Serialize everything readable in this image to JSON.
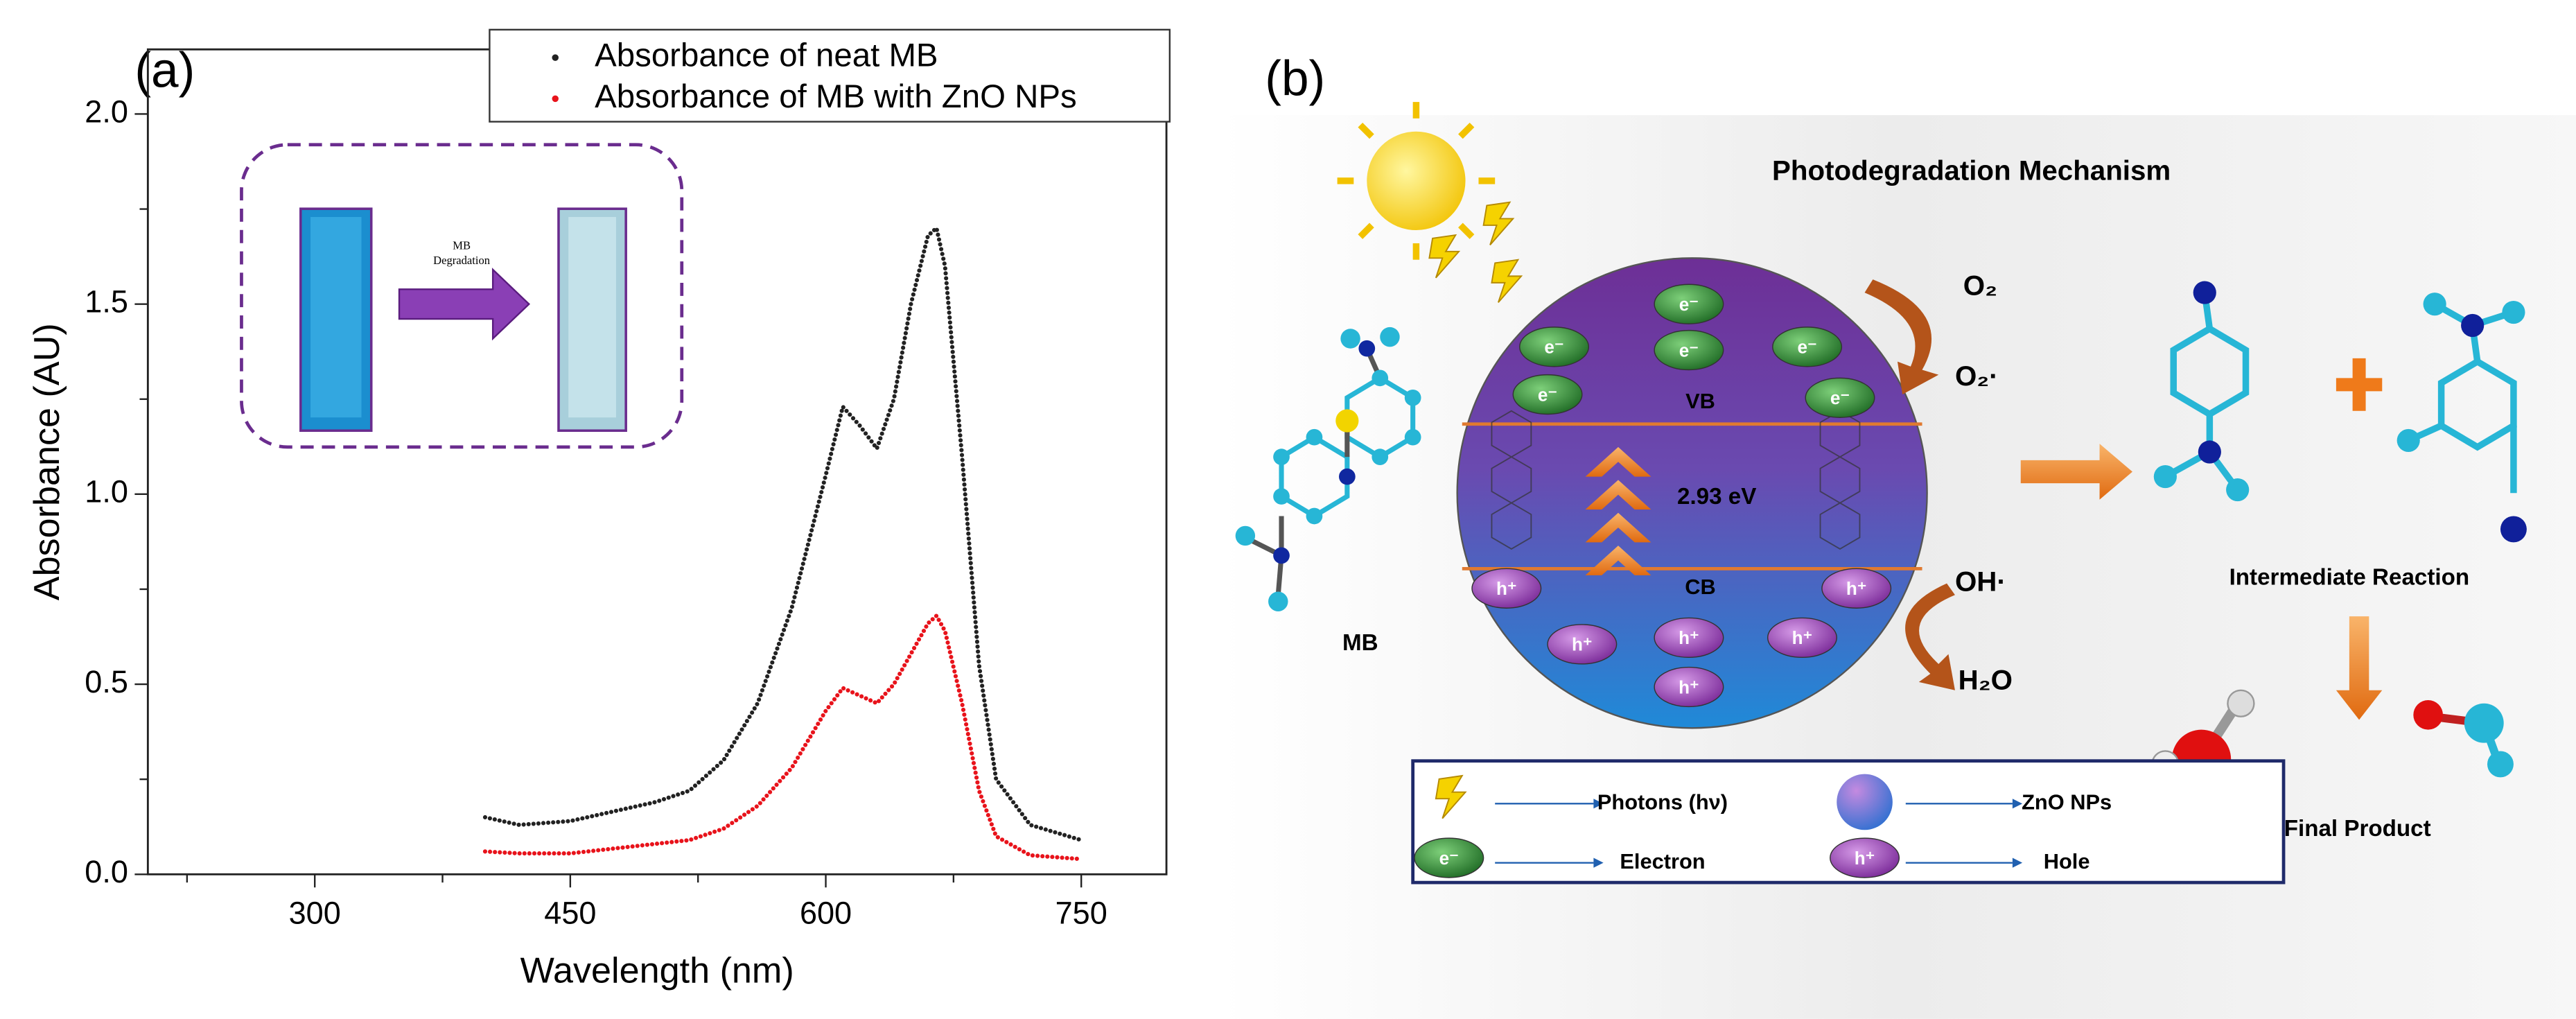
{
  "panel_labels": [
    "(a)",
    "(b)"
  ],
  "chart_data": {
    "type": "line",
    "x_label": "Wavelength (nm)",
    "y_label": "Absorbance (AU)",
    "x": [
      400,
      420,
      450,
      480,
      500,
      520,
      540,
      560,
      580,
      600,
      610,
      620,
      630,
      640,
      650,
      660,
      665,
      670,
      680,
      690,
      700,
      720,
      750
    ],
    "series": [
      {
        "name": "Absorbance of neat MB",
        "color": "#222222",
        "values": [
          0.15,
          0.13,
          0.14,
          0.17,
          0.19,
          0.22,
          0.3,
          0.45,
          0.7,
          1.05,
          1.23,
          1.18,
          1.12,
          1.25,
          1.5,
          1.68,
          1.7,
          1.6,
          1.1,
          0.55,
          0.25,
          0.13,
          0.09
        ]
      },
      {
        "name": "Absorbance of MB with ZnO NPs",
        "color": "#e8131b",
        "values": [
          0.06,
          0.055,
          0.055,
          0.07,
          0.08,
          0.09,
          0.12,
          0.18,
          0.28,
          0.43,
          0.49,
          0.47,
          0.45,
          0.5,
          0.58,
          0.66,
          0.68,
          0.64,
          0.45,
          0.22,
          0.1,
          0.05,
          0.04
        ]
      }
    ],
    "xlim": [
      202,
      800
    ],
    "ylim": [
      0,
      2.17
    ],
    "xticks": [
      300,
      450,
      600,
      750
    ],
    "xminorticks": [
      225,
      375,
      525,
      675
    ],
    "yticks": [
      {
        "value": 0,
        "label": "0.0"
      },
      0.5,
      {
        "value": 1,
        "label": "1.0"
      },
      1.5,
      {
        "value": 2,
        "label": "2.0"
      }
    ],
    "yminorticks": [
      0.25,
      0.75,
      1.25,
      1.75
    ],
    "inset_label": [
      "MB",
      "Degradation"
    ]
  },
  "diagram": {
    "title": "Photodegradation Mechanism",
    "valence_band": "VB",
    "conduction_band": "CB",
    "band_gap": "2.93 eV",
    "electron": "e⁻",
    "hole": "h⁺",
    "dye": "MB",
    "oxygen": "O₂",
    "superoxide": "O₂·",
    "hydroxyl": "OH·",
    "water": "H₂O",
    "intermediate": "Intermediate Reaction",
    "final": "Final Product",
    "legend": {
      "photons": "Photons (hν)",
      "zno": "ZnO NPs",
      "electron": "Electron",
      "hole": "Hole"
    }
  }
}
